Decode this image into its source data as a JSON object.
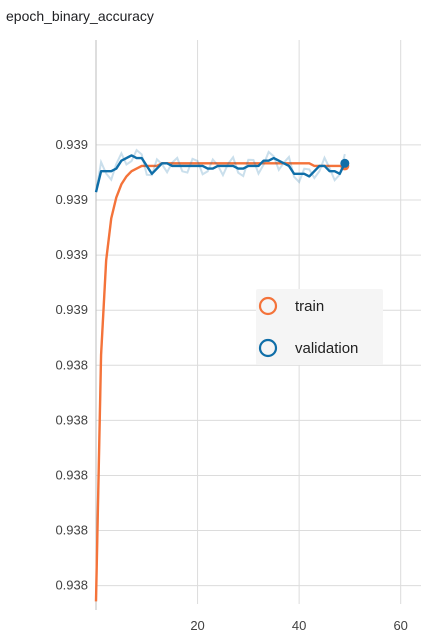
{
  "chart_data": {
    "type": "line",
    "title": "epoch_binary_accuracy",
    "xlabel": "",
    "ylabel": "",
    "xlim": [
      0,
      64
    ],
    "ylim": [
      0.93775,
      0.9399
    ],
    "x_ticks": [
      20,
      40,
      60
    ],
    "y_ticks": [
      0.93782,
      0.93803,
      0.93824,
      0.93845,
      0.93866,
      0.93887,
      0.93908,
      0.93929,
      0.9395
    ],
    "y_tick_labels": [
      "0.938",
      "0.938",
      "0.938",
      "0.938",
      "0.938",
      "0.939",
      "0.939",
      "0.939",
      "0.939"
    ],
    "grid": true,
    "legend_position": "right",
    "series": [
      {
        "name": "train",
        "color": "#f4733a",
        "x": [
          0,
          1,
          2,
          3,
          4,
          5,
          6,
          7,
          8,
          9,
          10,
          11,
          12,
          13,
          14,
          15,
          16,
          17,
          18,
          19,
          20,
          21,
          22,
          23,
          24,
          25,
          26,
          27,
          28,
          29,
          30,
          31,
          32,
          33,
          34,
          35,
          36,
          37,
          38,
          39,
          40,
          41,
          42,
          43,
          44,
          45,
          46,
          47,
          48,
          49
        ],
        "values": [
          0.93776,
          0.9387,
          0.93906,
          0.93922,
          0.9393,
          0.93935,
          0.93938,
          0.9394,
          0.93941,
          0.93942,
          0.93942,
          0.93942,
          0.93942,
          0.93943,
          0.93943,
          0.93943,
          0.93943,
          0.93943,
          0.93943,
          0.93943,
          0.93943,
          0.93943,
          0.93943,
          0.93943,
          0.93943,
          0.93943,
          0.93943,
          0.93943,
          0.93943,
          0.93943,
          0.93943,
          0.93943,
          0.93943,
          0.93943,
          0.93943,
          0.93943,
          0.93943,
          0.93943,
          0.93943,
          0.93943,
          0.93943,
          0.93943,
          0.93943,
          0.93942,
          0.93942,
          0.93942,
          0.93942,
          0.93942,
          0.93942,
          0.93942
        ]
      },
      {
        "name": "validation",
        "color": "#0f6ea8",
        "x": [
          0,
          1,
          2,
          3,
          4,
          5,
          6,
          7,
          8,
          9,
          10,
          11,
          12,
          13,
          14,
          15,
          16,
          17,
          18,
          19,
          20,
          21,
          22,
          23,
          24,
          25,
          26,
          27,
          28,
          29,
          30,
          31,
          32,
          33,
          34,
          35,
          36,
          37,
          38,
          39,
          40,
          41,
          42,
          43,
          44,
          45,
          46,
          47,
          48,
          49
        ],
        "values": [
          0.93932,
          0.9394,
          0.9394,
          0.9394,
          0.93941,
          0.93944,
          0.93945,
          0.93946,
          0.93945,
          0.93945,
          0.93942,
          0.93939,
          0.93941,
          0.93943,
          0.93943,
          0.93942,
          0.93942,
          0.93942,
          0.93942,
          0.93942,
          0.93942,
          0.93942,
          0.93941,
          0.93941,
          0.93942,
          0.93942,
          0.93942,
          0.93942,
          0.93941,
          0.93941,
          0.93942,
          0.93942,
          0.93942,
          0.93944,
          0.93944,
          0.93945,
          0.93944,
          0.93943,
          0.93942,
          0.93939,
          0.93939,
          0.93939,
          0.93938,
          0.9394,
          0.93942,
          0.93942,
          0.9394,
          0.9394,
          0.93939,
          0.93943
        ]
      }
    ]
  }
}
